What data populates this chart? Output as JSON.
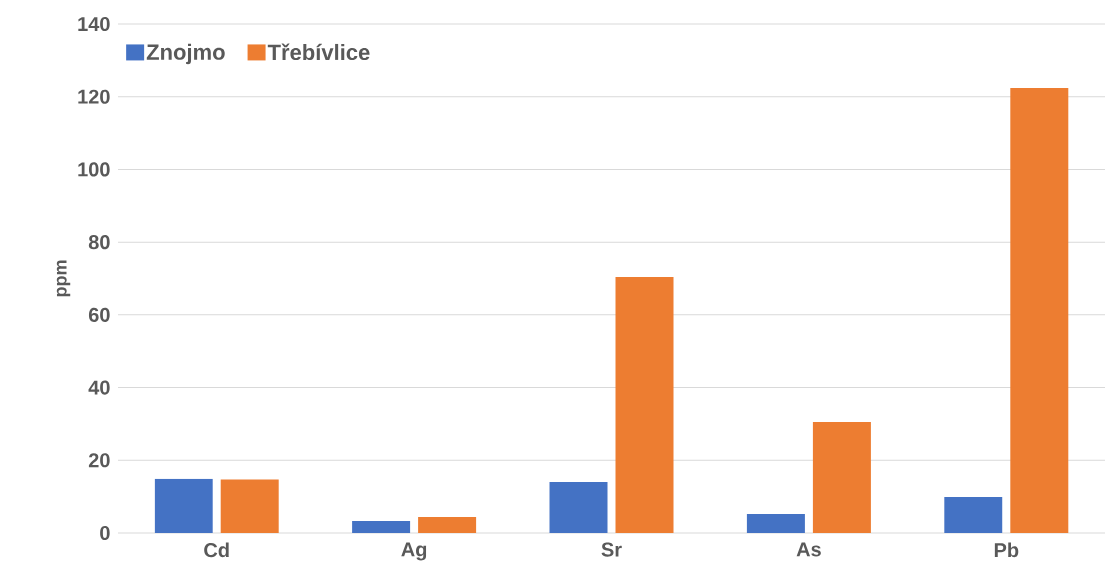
{
  "chart_data": {
    "type": "bar",
    "ylabel": "ppm",
    "categories": [
      "Cd",
      "Ag",
      "Sr",
      "As",
      "Pb"
    ],
    "series": [
      {
        "name": "Znojmo",
        "color": "#4472c4",
        "values": [
          14.9,
          3.3,
          14.0,
          5.2,
          9.9
        ]
      },
      {
        "name": "Třebívlice",
        "color": "#ed7d31",
        "values": [
          14.7,
          4.4,
          70.4,
          30.5,
          122.4
        ]
      }
    ],
    "ylim": [
      0,
      140
    ],
    "yticks": [
      0,
      20,
      40,
      60,
      80,
      100,
      120,
      140
    ],
    "grid": "y",
    "legend": "top left"
  }
}
